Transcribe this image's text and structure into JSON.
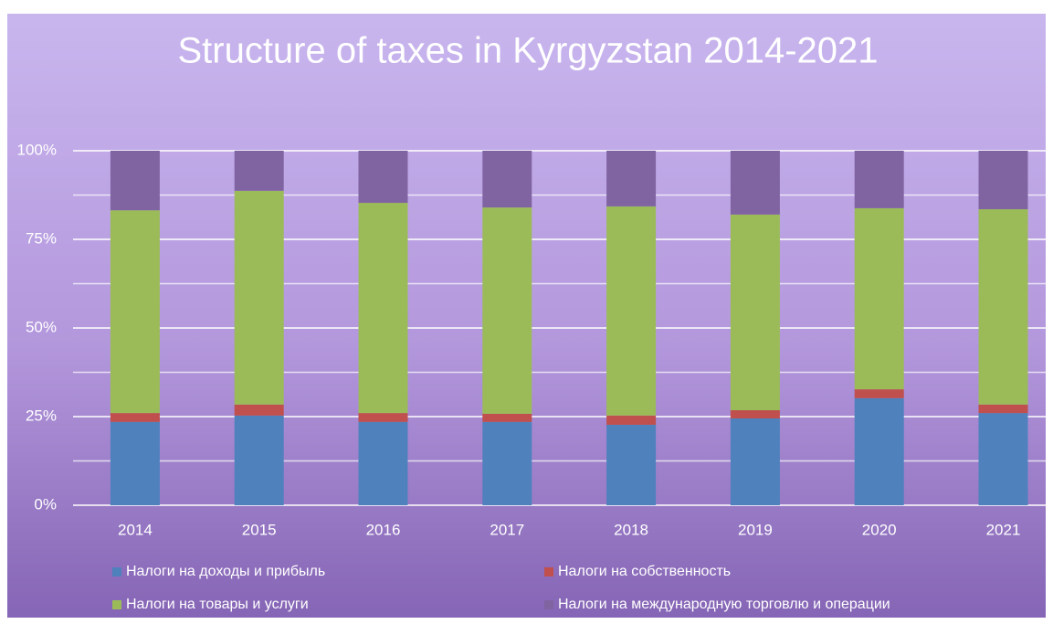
{
  "chart_data": {
    "type": "stacked_bar",
    "title": "Structure of taxes in Kyrgyzstan 2014-2021",
    "categories": [
      "2014",
      "2015",
      "2016",
      "2017",
      "2018",
      "2019",
      "2020",
      "2021"
    ],
    "series": [
      {
        "name": "Налоги на доходы и прибыль",
        "color": "#4f81bd",
        "values": [
          23.5,
          25.3,
          23.5,
          23.5,
          22.7,
          24.5,
          30.2,
          26.0
        ]
      },
      {
        "name": "Налоги на собственность",
        "color": "#c0504d",
        "values": [
          2.5,
          3.1,
          2.5,
          2.3,
          2.6,
          2.3,
          2.5,
          2.4
        ]
      },
      {
        "name": "Налоги на товары и услуги",
        "color": "#9bbb59",
        "values": [
          57.2,
          60.3,
          59.3,
          58.2,
          59.0,
          55.2,
          51.1,
          55.1
        ]
      },
      {
        "name": "Налоги на международную торговлю и операции",
        "color": "#8064a2",
        "values": [
          16.8,
          11.3,
          14.7,
          16.0,
          15.7,
          18.0,
          16.2,
          16.5
        ]
      }
    ],
    "ylim": [
      0,
      100
    ],
    "yticks": [
      {
        "value": 0,
        "label": "0%"
      },
      {
        "value": 25,
        "label": "25%"
      },
      {
        "value": 50,
        "label": "50%"
      },
      {
        "value": 75,
        "label": "75%"
      },
      {
        "value": 100,
        "label": "100%"
      }
    ],
    "minor_yticks": [
      12.5,
      37.5,
      62.5,
      87.5
    ],
    "grid": true,
    "legend": "bottom"
  }
}
